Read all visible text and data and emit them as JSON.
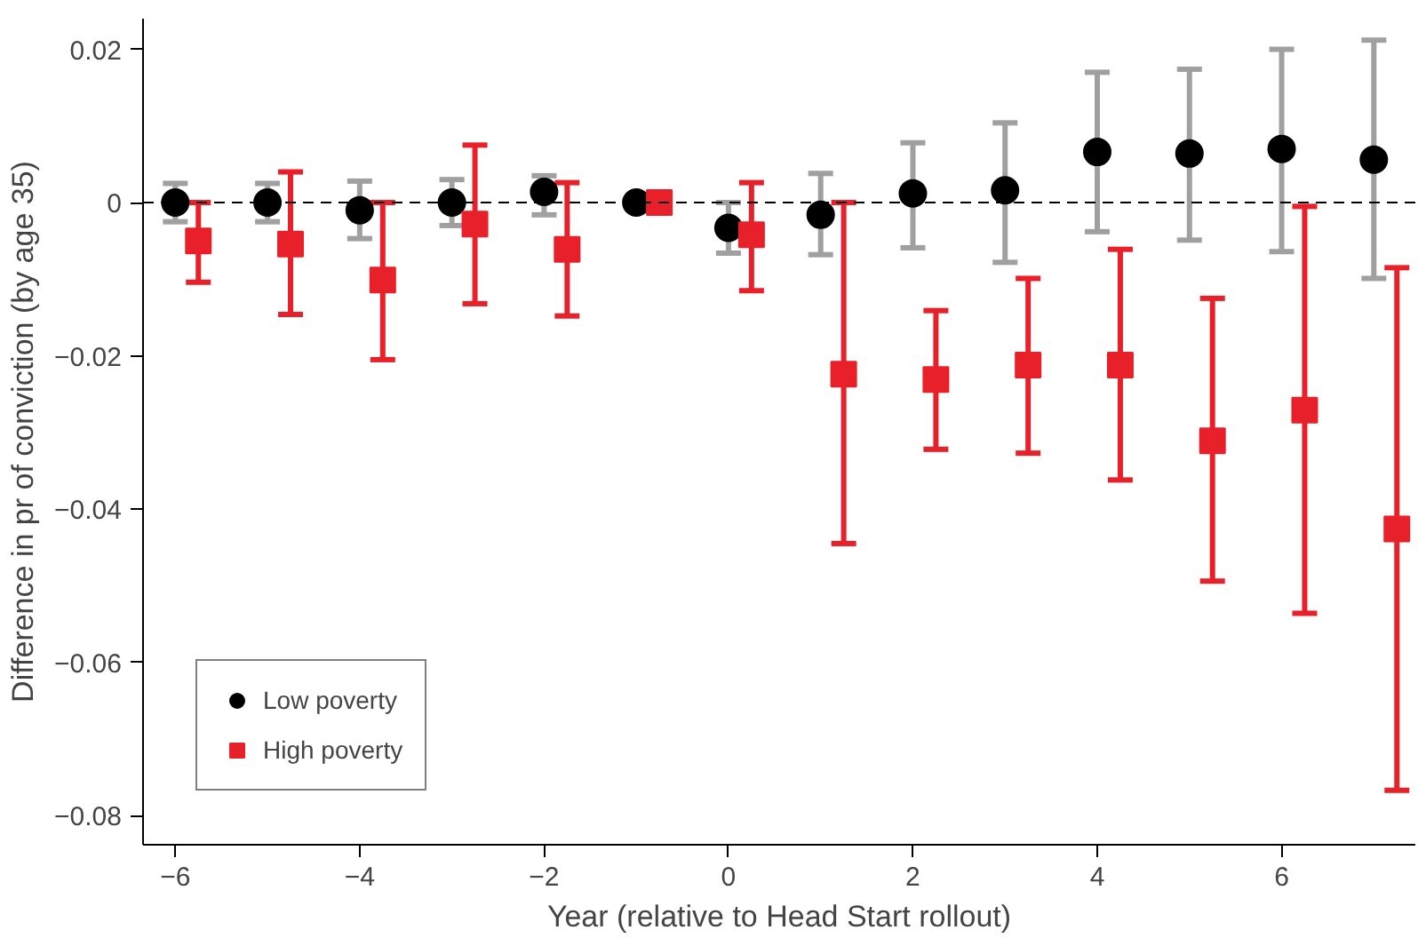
{
  "chart_data": {
    "type": "scatter",
    "xlabel": "Year (relative to Head Start rollout)",
    "ylabel": "Difference in pr of conviction (by age 35)",
    "xlim": [
      -6.35,
      7.45
    ],
    "ylim": [
      -0.0838,
      0.024
    ],
    "xticks": [
      {
        "value": -6,
        "label": "−6"
      },
      {
        "value": -4,
        "label": "−4"
      },
      {
        "value": -2,
        "label": "−2"
      },
      0,
      2,
      4,
      6
    ],
    "yticks": [
      {
        "value": -0.08,
        "label": "−0.08"
      },
      {
        "value": -0.06,
        "label": "−0.06"
      },
      {
        "value": -0.04,
        "label": "−0.04"
      },
      {
        "value": -0.02,
        "label": "−0.02"
      },
      0,
      0.02
    ],
    "grid": false,
    "legend": "bottom left",
    "ref_lines": [
      {
        "axis": "y",
        "value": 0,
        "color": "#000000",
        "line_style": "dashed"
      }
    ],
    "series": [
      {
        "name": "Low poverty",
        "color": "#000000",
        "marker": "circle",
        "x": [
          -6,
          -5,
          -4,
          -3,
          -2,
          -1,
          0,
          1,
          2,
          3,
          4,
          5,
          6,
          7
        ],
        "values": [
          0,
          0,
          -0.001,
          0,
          0.0014,
          0,
          -0.0033,
          -0.0016,
          0.0012,
          0.0016,
          0.0066,
          0.0064,
          0.007,
          0.0056
        ],
        "errors": [
          [
            -0.0025,
            0.0025
          ],
          [
            -0.0025,
            0.0025
          ],
          [
            -0.0047,
            0.0028
          ],
          [
            -0.003,
            0.003
          ],
          [
            -0.0016,
            0.0035
          ],
          null,
          [
            -0.0066,
            0
          ],
          [
            -0.0068,
            0.0038
          ],
          [
            -0.0059,
            0.0078
          ],
          [
            -0.0078,
            0.0104
          ],
          [
            -0.0038,
            0.017
          ],
          [
            -0.0049,
            0.0174
          ],
          [
            -0.0064,
            0.02
          ],
          [
            -0.0099,
            0.0212
          ]
        ]
      },
      {
        "name": "High poverty",
        "color": "#e8202a",
        "marker": "square",
        "x": [
          -5.75,
          -4.75,
          -3.75,
          -2.75,
          -1.75,
          -0.75,
          0.25,
          1.25,
          2.25,
          3.25,
          4.25,
          5.25,
          6.25,
          7.25
        ],
        "values": [
          -0.005,
          -0.0054,
          -0.0101,
          -0.0028,
          -0.0061,
          0,
          -0.0042,
          -0.0224,
          -0.0231,
          -0.0212,
          -0.0212,
          -0.0311,
          -0.0271,
          -0.0426
        ],
        "errors": [
          [
            -0.0104,
            0
          ],
          [
            -0.0146,
            0.004
          ],
          [
            -0.0205,
            0
          ],
          [
            -0.0132,
            0.0075
          ],
          [
            -0.0148,
            0.0026
          ],
          null,
          [
            -0.0115,
            0.0026
          ],
          [
            -0.0445,
            0
          ],
          [
            -0.0322,
            -0.0141
          ],
          [
            -0.0327,
            -0.0099
          ],
          [
            -0.0362,
            -0.0061
          ],
          [
            -0.0494,
            -0.0125
          ],
          [
            -0.0536,
            -0.0005
          ],
          [
            -0.0767,
            -0.0085
          ]
        ]
      }
    ]
  }
}
